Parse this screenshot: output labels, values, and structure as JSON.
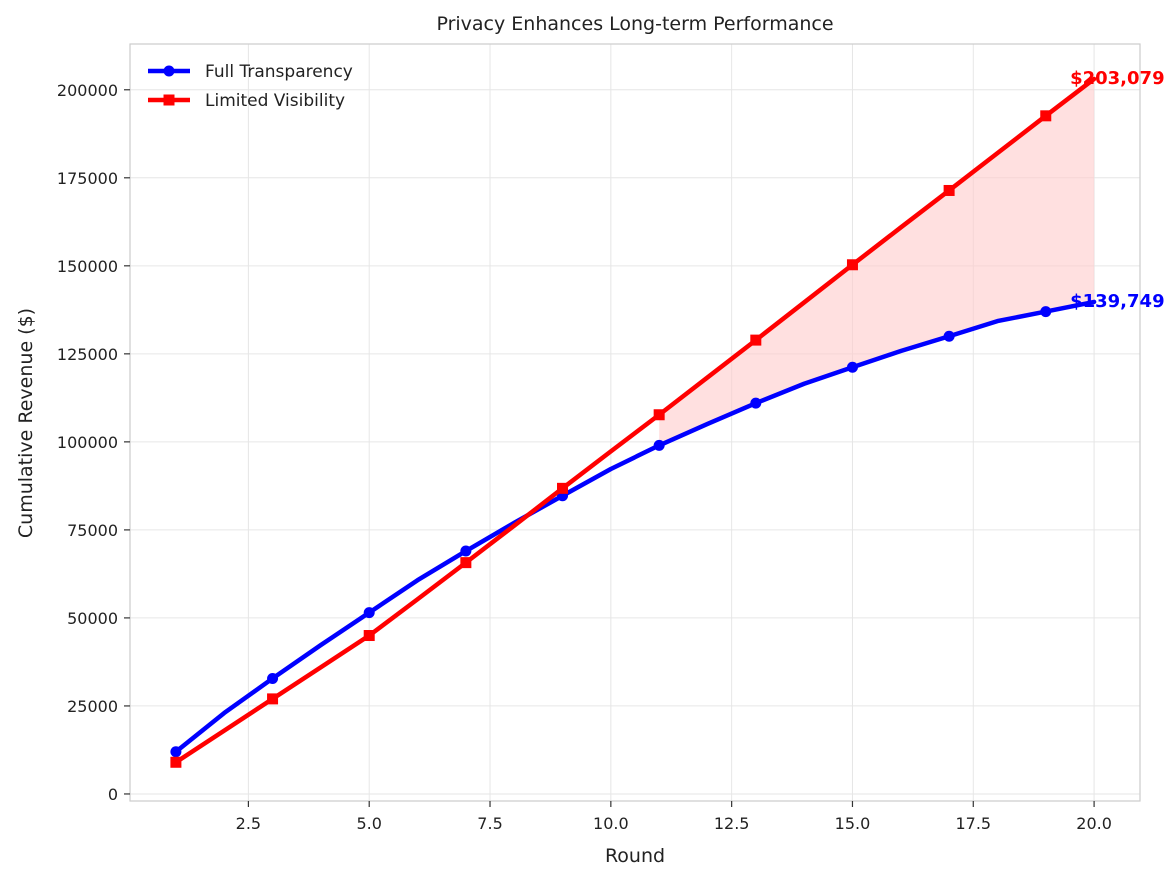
{
  "chart_data": {
    "type": "line",
    "title": "Privacy Enhances Long-term Performance",
    "xlabel": "Round",
    "ylabel": "Cumulative Revenue ($)",
    "xlim": [
      0.05,
      20.95
    ],
    "ylim": [
      -2000,
      213000
    ],
    "x_ticks": [
      2.5,
      5.0,
      7.5,
      10.0,
      12.5,
      15.0,
      17.5,
      20.0
    ],
    "x_tick_labels": [
      "2.5",
      "5.0",
      "7.5",
      "10.0",
      "12.5",
      "15.0",
      "17.5",
      "20.0"
    ],
    "y_ticks": [
      0,
      25000,
      50000,
      75000,
      100000,
      125000,
      150000,
      175000,
      200000
    ],
    "y_tick_labels": [
      "0",
      "25000",
      "50000",
      "75000",
      "100000",
      "125000",
      "150000",
      "175000",
      "200000"
    ],
    "grid": true,
    "legend_position": "top-left",
    "x": [
      1,
      2,
      3,
      4,
      5,
      6,
      7,
      8,
      9,
      10,
      11,
      12,
      13,
      14,
      15,
      16,
      17,
      18,
      19,
      20
    ],
    "series": [
      {
        "name": "Full Transparency",
        "color": "#0000ff",
        "marker": "circle",
        "values": [
          12000,
          23000,
          32800,
          42300,
          51500,
          60700,
          69000,
          77000,
          84700,
          92300,
          99000,
          105100,
          111000,
          116500,
          121200,
          125800,
          130000,
          134300,
          137000,
          139749
        ]
      },
      {
        "name": "Limited Visibility",
        "color": "#ff0000",
        "marker": "square",
        "values": [
          9000,
          18000,
          27000,
          36000,
          45000,
          55300,
          65700,
          76200,
          86800,
          97300,
          107700,
          118300,
          128900,
          139600,
          150300,
          160900,
          171400,
          182000,
          192600,
          203079
        ]
      }
    ],
    "marker_every": 2,
    "fill_between": {
      "from_x": 11,
      "to_x": 20,
      "color": "#ffcccc",
      "opacity": 0.6
    },
    "end_labels": [
      {
        "series": "Limited Visibility",
        "text": "$203,079",
        "color": "#ff0000"
      },
      {
        "series": "Full Transparency",
        "text": "$139,749",
        "color": "#0000ff"
      }
    ]
  }
}
